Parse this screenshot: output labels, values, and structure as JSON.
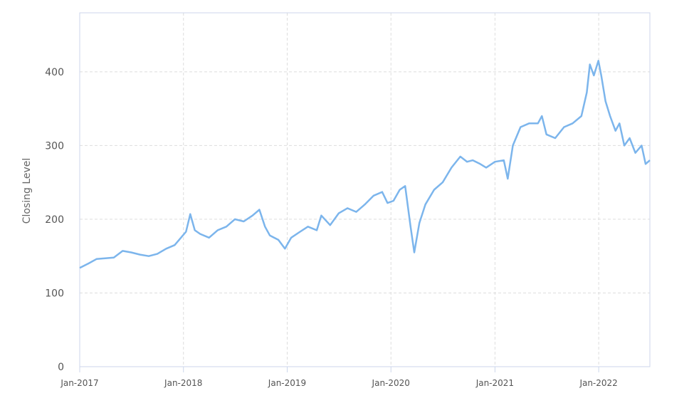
{
  "chart_data": {
    "type": "line",
    "title": "",
    "xlabel": "",
    "ylabel": "Closing Level",
    "ylim": [
      0,
      480
    ],
    "xlim": [
      "2017-01-01",
      "2022-06-30"
    ],
    "y_ticks": [
      "0",
      "100",
      "200",
      "300",
      "400"
    ],
    "x_ticks": [
      {
        "label": "Jan-2017",
        "date": "2017-01-01"
      },
      {
        "label": "Jan-2018",
        "date": "2018-01-01"
      },
      {
        "label": "Jan-2019",
        "date": "2019-01-01"
      },
      {
        "label": "Jan-2020",
        "date": "2020-01-01"
      },
      {
        "label": "Jan-2021",
        "date": "2021-01-01"
      },
      {
        "label": "Jan-2022",
        "date": "2022-01-01"
      }
    ],
    "grid": true,
    "line_color": "#7cb5ec",
    "series": [
      {
        "x": [
          "2017-01-01",
          "2017-02-01",
          "2017-03-01",
          "2017-04-01",
          "2017-05-01",
          "2017-06-01",
          "2017-07-01",
          "2017-08-01",
          "2017-09-01",
          "2017-10-01",
          "2017-11-01",
          "2017-12-01",
          "2018-01-10",
          "2018-01-25",
          "2018-02-10",
          "2018-03-01",
          "2018-04-01",
          "2018-05-01",
          "2018-06-01",
          "2018-07-01",
          "2018-08-01",
          "2018-09-01",
          "2018-09-25",
          "2018-10-15",
          "2018-11-01",
          "2018-12-01",
          "2018-12-24",
          "2019-01-15",
          "2019-02-15",
          "2019-03-15",
          "2019-04-15",
          "2019-05-01",
          "2019-06-01",
          "2019-07-01",
          "2019-08-01",
          "2019-09-01",
          "2019-10-01",
          "2019-11-01",
          "2019-12-01",
          "2019-12-20",
          "2020-01-10",
          "2020-02-01",
          "2020-02-20",
          "2020-03-10",
          "2020-03-23",
          "2020-04-10",
          "2020-05-01",
          "2020-06-01",
          "2020-07-01",
          "2020-08-01",
          "2020-09-01",
          "2020-09-25",
          "2020-10-15",
          "2020-11-10",
          "2020-12-01",
          "2021-01-01",
          "2021-02-01",
          "2021-02-15",
          "2021-03-05",
          "2021-04-01",
          "2021-05-01",
          "2021-06-01",
          "2021-06-15",
          "2021-07-01",
          "2021-08-01",
          "2021-09-01",
          "2021-10-01",
          "2021-11-01",
          "2021-11-20",
          "2021-12-01",
          "2021-12-15",
          "2021-12-31",
          "2022-01-10",
          "2022-01-25",
          "2022-02-10",
          "2022-03-01",
          "2022-03-15",
          "2022-04-01",
          "2022-04-20",
          "2022-05-10",
          "2022-06-01",
          "2022-06-15",
          "2022-06-30"
        ],
        "y": [
          134,
          140,
          146,
          147,
          148,
          157,
          155,
          152,
          150,
          153,
          160,
          165,
          183,
          207,
          185,
          180,
          175,
          185,
          190,
          200,
          197,
          205,
          213,
          190,
          178,
          172,
          160,
          175,
          183,
          190,
          185,
          205,
          192,
          208,
          215,
          210,
          220,
          232,
          237,
          222,
          225,
          240,
          245,
          190,
          155,
          195,
          220,
          240,
          250,
          270,
          285,
          278,
          280,
          275,
          270,
          278,
          280,
          255,
          300,
          325,
          330,
          330,
          340,
          315,
          310,
          325,
          330,
          340,
          372,
          410,
          395,
          415,
          395,
          360,
          340,
          320,
          330,
          300,
          310,
          290,
          300,
          275,
          280
        ]
      }
    ]
  }
}
